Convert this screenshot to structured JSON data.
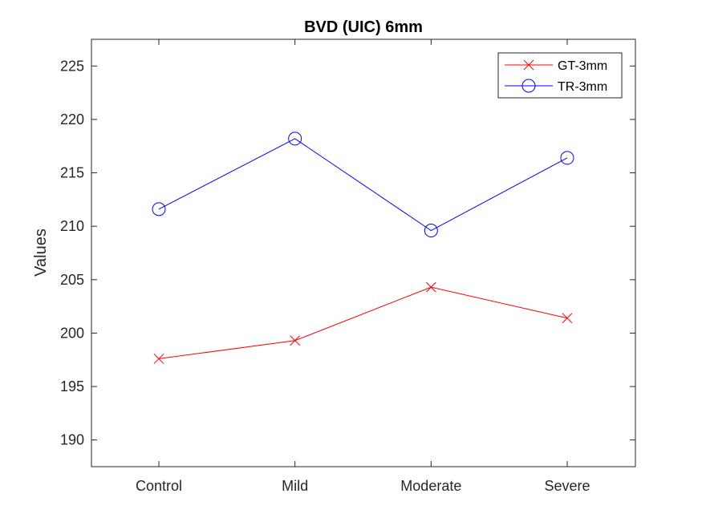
{
  "chart_data": {
    "type": "line",
    "title": "BVD (UIC) 6mm",
    "xlabel": "",
    "ylabel": "Values",
    "categories": [
      "Control",
      "Mild",
      "Moderate",
      "Severe"
    ],
    "ylim": [
      187.5,
      227.5
    ],
    "yticks": [
      190,
      195,
      200,
      205,
      210,
      215,
      220,
      225
    ],
    "ytick_labels": [
      "190",
      "195",
      "200",
      "205",
      "210",
      "215",
      "220",
      "225"
    ],
    "grid": false,
    "legend_position": "top-right",
    "series": [
      {
        "name": "GT-3mm",
        "color": "#ff0000",
        "marker": "x",
        "values": [
          197.6,
          199.3,
          204.3,
          201.4
        ]
      },
      {
        "name": "TR-3mm",
        "color": "#0000ff",
        "marker": "o",
        "values": [
          211.6,
          218.2,
          209.6,
          216.4
        ]
      }
    ]
  }
}
